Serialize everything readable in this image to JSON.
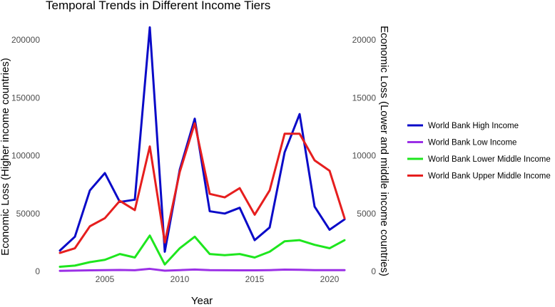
{
  "chart_data": {
    "type": "line",
    "title": "Temporal Trends in Different Income Tiers",
    "xlabel": "Year",
    "ylabel_left": "Economic Loss (Higher income countries)",
    "ylabel_right": "Economic Loss (Lower and middle income countries)",
    "xlim": [
      2002,
      2021
    ],
    "ylim_left": [
      0,
      210000
    ],
    "ylim_right": [
      0,
      21000
    ],
    "x_ticks": [
      2005,
      2010,
      2015,
      2020
    ],
    "y_left_ticks": [
      0,
      50000,
      100000,
      150000,
      200000
    ],
    "y_right_ticks": [
      0,
      5000,
      10000,
      15000,
      20000
    ],
    "grid": false,
    "legend_position": "right",
    "x": [
      2002,
      2003,
      2004,
      2005,
      2006,
      2007,
      2008,
      2009,
      2010,
      2011,
      2012,
      2013,
      2014,
      2015,
      2016,
      2017,
      2018,
      2019,
      2020,
      2021
    ],
    "series": [
      {
        "name": "World Bank High Income",
        "color": "#0a0ac8",
        "axis": "left",
        "values": [
          18000,
          30000,
          70000,
          85000,
          60000,
          62000,
          211000,
          17000,
          88000,
          132000,
          52000,
          50000,
          55000,
          27000,
          38000,
          103000,
          136000,
          56000,
          36000,
          45000
        ]
      },
      {
        "name": "World Bank Low Income",
        "color": "#9b30e6",
        "axis": "right",
        "values": [
          50,
          70,
          90,
          110,
          120,
          100,
          220,
          60,
          110,
          160,
          110,
          100,
          90,
          90,
          110,
          150,
          140,
          110,
          110,
          110
        ]
      },
      {
        "name": "World Bank Lower Middle Income",
        "color": "#1ee61e",
        "axis": "right",
        "values": [
          400,
          500,
          800,
          1000,
          1500,
          1200,
          3100,
          600,
          2000,
          3000,
          1500,
          1400,
          1500,
          1200,
          1700,
          2600,
          2700,
          2300,
          2000,
          2700
        ]
      },
      {
        "name": "World Bank Upper Middle Income",
        "color": "#e61e1e",
        "axis": "right",
        "values": [
          1600,
          2000,
          3900,
          4600,
          6100,
          5300,
          10800,
          2500,
          8600,
          12800,
          6700,
          6400,
          7200,
          4900,
          7000,
          11900,
          11900,
          9600,
          8700,
          4600
        ]
      }
    ]
  }
}
